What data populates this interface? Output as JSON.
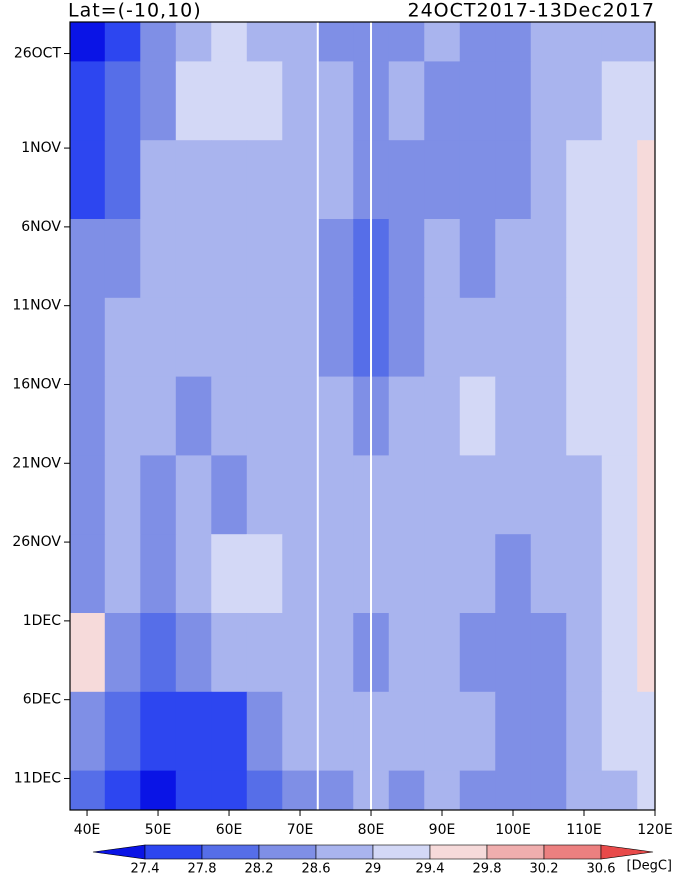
{
  "chart_data": {
    "type": "heatmap",
    "title_left": "Lat=(-10,10)",
    "title_right": "24OCT2017-13Dec2017",
    "colorbar_unit": "[DegC]",
    "xlim": [
      37.6,
      120
    ],
    "xticks": [
      {
        "value": 40,
        "label": "40E"
      },
      {
        "value": 50,
        "label": "50E"
      },
      {
        "value": 60,
        "label": "60E"
      },
      {
        "value": 70,
        "label": "70E"
      },
      {
        "value": 80,
        "label": "80E"
      },
      {
        "value": 90,
        "label": "90E"
      },
      {
        "value": 100,
        "label": "100E"
      },
      {
        "value": 110,
        "label": "110E"
      },
      {
        "value": 120,
        "label": "120E"
      }
    ],
    "ylim": [
      0,
      50
    ],
    "yticks": [
      {
        "value": 2,
        "label": "26OCT"
      },
      {
        "value": 8,
        "label": "1NOV"
      },
      {
        "value": 13,
        "label": "6NOV"
      },
      {
        "value": 18,
        "label": "11NOV"
      },
      {
        "value": 23,
        "label": "16NOV"
      },
      {
        "value": 28,
        "label": "21NOV"
      },
      {
        "value": 33,
        "label": "26NOV"
      },
      {
        "value": 38,
        "label": "1DEC"
      },
      {
        "value": 43,
        "label": "6DEC"
      },
      {
        "value": 48,
        "label": "11DEC"
      }
    ],
    "lons": [
      40,
      45,
      50,
      55,
      60,
      65,
      70,
      75,
      80,
      85,
      90,
      95,
      100,
      105,
      110,
      115,
      120
    ],
    "days": [
      0,
      5,
      10,
      15,
      20,
      25,
      30,
      35,
      40,
      45,
      50
    ],
    "values": [
      [
        27.3,
        27.5,
        28.3,
        28.7,
        29.0,
        28.8,
        28.7,
        28.4,
        28.5,
        28.3,
        28.6,
        28.3,
        28.5,
        28.7,
        28.8,
        28.8,
        28.9
      ],
      [
        27.5,
        27.8,
        28.3,
        29.1,
        29.2,
        29.0,
        28.7,
        28.7,
        28.4,
        28.6,
        28.5,
        28.2,
        28.4,
        28.6,
        28.8,
        29.0,
        29.3
      ],
      [
        27.7,
        27.9,
        28.6,
        28.8,
        28.7,
        28.6,
        28.7,
        28.6,
        28.3,
        28.4,
        28.5,
        28.3,
        28.4,
        28.6,
        29.0,
        29.3,
        29.6
      ],
      [
        28.2,
        28.4,
        28.7,
        28.8,
        28.7,
        28.8,
        28.7,
        28.4,
        28.0,
        28.5,
        28.6,
        28.5,
        28.6,
        28.8,
        29.0,
        29.3,
        29.5
      ],
      [
        28.4,
        28.6,
        28.6,
        28.6,
        28.8,
        28.7,
        28.7,
        28.5,
        27.9,
        28.5,
        28.8,
        28.7,
        28.7,
        28.8,
        29.1,
        29.2,
        29.5
      ],
      [
        28.3,
        28.7,
        28.6,
        28.4,
        28.6,
        28.7,
        28.8,
        28.6,
        28.5,
        28.8,
        28.7,
        29.0,
        28.9,
        28.7,
        29.0,
        29.3,
        29.6
      ],
      [
        28.5,
        28.6,
        28.5,
        28.6,
        28.4,
        28.6,
        28.8,
        28.6,
        28.6,
        28.6,
        28.7,
        28.9,
        28.6,
        28.6,
        28.9,
        29.3,
        29.5
      ],
      [
        28.2,
        28.8,
        28.4,
        28.6,
        29.0,
        29.0,
        28.8,
        28.7,
        28.6,
        28.6,
        28.7,
        28.6,
        28.3,
        28.6,
        28.8,
        29.2,
        29.5
      ],
      [
        29.5,
        28.2,
        28.1,
        28.4,
        28.8,
        28.9,
        28.7,
        28.8,
        28.5,
        28.7,
        28.6,
        28.5,
        28.4,
        28.5,
        28.8,
        29.1,
        29.5
      ],
      [
        28.4,
        28.0,
        27.4,
        27.5,
        27.7,
        28.2,
        28.6,
        28.6,
        28.6,
        28.7,
        28.9,
        28.6,
        28.5,
        28.4,
        28.7,
        29.0,
        29.3
      ],
      [
        27.9,
        27.5,
        27.2,
        27.4,
        27.5,
        28.0,
        28.5,
        28.4,
        28.6,
        28.5,
        28.6,
        28.5,
        28.4,
        28.3,
        28.6,
        28.9,
        29.2
      ]
    ],
    "levels": [
      27.4,
      27.8,
      28.2,
      28.6,
      29,
      29.4,
      29.8,
      30.2,
      30.6
    ],
    "colors": [
      "#0a14e6",
      "#2d46f0",
      "#566ee8",
      "#7f8fe6",
      "#a9b4ee",
      "#d3d8f6",
      "#f6dada",
      "#f0aeae",
      "#ec8080",
      "#e84a4a"
    ],
    "vlines": [
      72.5,
      80
    ],
    "vline_color": "#ffffff"
  }
}
